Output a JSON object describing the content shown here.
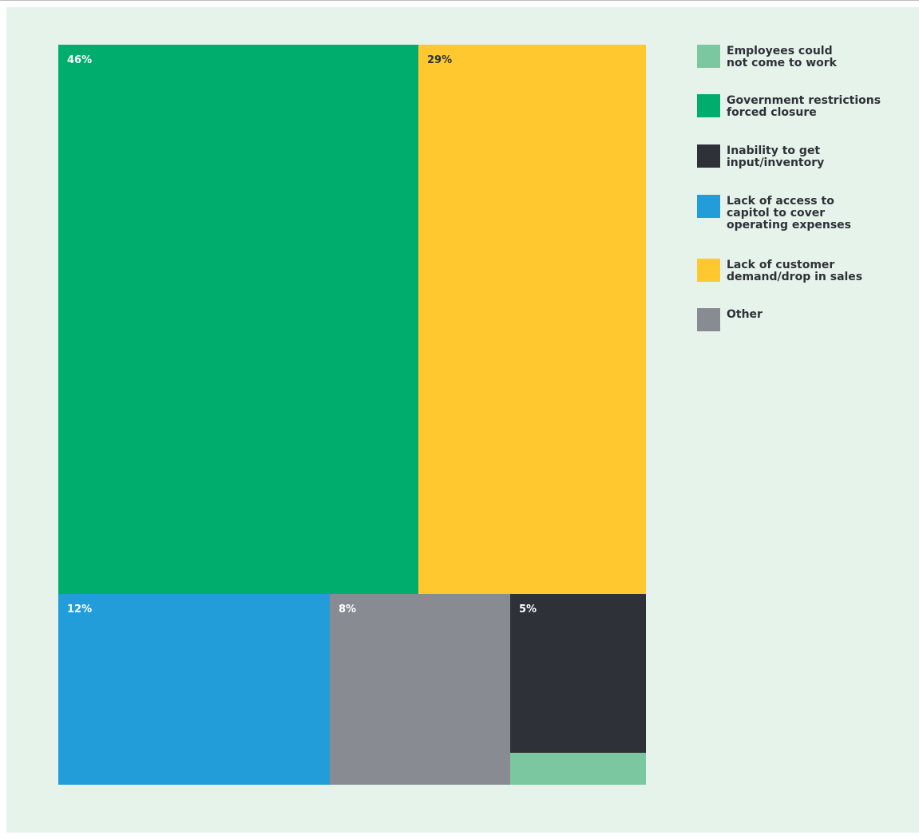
{
  "chart_data": {
    "type": "treemap",
    "title": "",
    "series": [
      {
        "name": "Government restrictions forced closure",
        "value": 46,
        "label": "46%",
        "color": "#00ad6d",
        "label_color": "#ffffff"
      },
      {
        "name": "Lack of customer demand/drop in sales",
        "value": 29,
        "label": "29%",
        "color": "#fec82e",
        "label_color": "#2f3139"
      },
      {
        "name": "Lack of access to capitol to cover operating expenses",
        "value": 12,
        "label": "12%",
        "color": "#229dd9",
        "label_color": "#ffffff"
      },
      {
        "name": "Other",
        "value": 8,
        "label": "8%",
        "color": "#898b93",
        "label_color": "#ffffff"
      },
      {
        "name": "Inability to get input/inventory",
        "value": 5,
        "label": "5%",
        "color": "#2f3139",
        "label_color": "#ffffff"
      },
      {
        "name": "Employees could not come to work",
        "value": 1,
        "label": "",
        "color": "#7ac7a0",
        "label_color": "#ffffff"
      }
    ]
  },
  "legend": [
    {
      "text": "Employees could\nnot come to work",
      "color": "#7ac7a0"
    },
    {
      "text": "Government restrictions\nforced closure",
      "color": "#00ad6d"
    },
    {
      "text": "Inability to get\ninput/inventory",
      "color": "#2f3139"
    },
    {
      "text": "Lack of access to\ncapitol to cover\noperating expenses",
      "color": "#229dd9"
    },
    {
      "text": "Lack of customer\ndemand/drop in sales",
      "color": "#fec82e"
    },
    {
      "text": "Other",
      "color": "#898b93"
    }
  ]
}
